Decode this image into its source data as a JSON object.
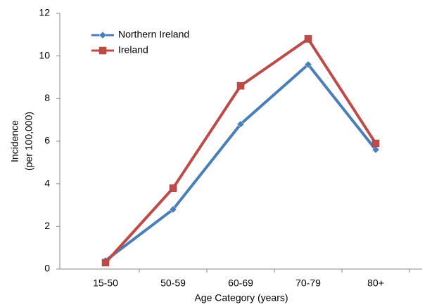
{
  "chart_data": {
    "type": "line",
    "x_label": "Age Category (years)",
    "y_label": [
      "Incidence",
      "(per 100,000)"
    ],
    "categories": [
      "15-50",
      "50-59",
      "60-69",
      "70-79",
      "80+"
    ],
    "series": [
      {
        "name": "Northern Ireland",
        "color": "#4a7ebb",
        "marker": "diamond",
        "values": [
          0.4,
          2.8,
          6.8,
          9.6,
          5.6
        ]
      },
      {
        "name": "Ireland",
        "color": "#be4b48",
        "marker": "square",
        "values": [
          0.3,
          3.8,
          8.6,
          10.8,
          5.9
        ]
      }
    ],
    "ylim": [
      0,
      12
    ],
    "yticks": [
      0,
      2,
      4,
      6,
      8,
      10,
      12
    ],
    "grid": false,
    "legend": "top-left"
  }
}
